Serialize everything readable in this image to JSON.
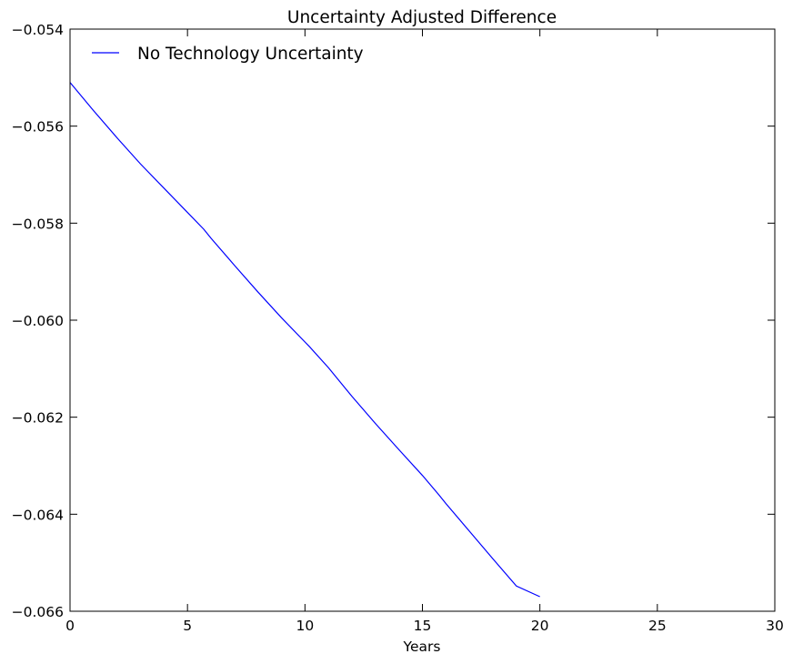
{
  "chart_data": {
    "type": "line",
    "title": "Uncertainty Adjusted Difference",
    "xlabel": "Years",
    "ylabel": "",
    "xlim": [
      0,
      30
    ],
    "ylim": [
      -0.066,
      -0.054
    ],
    "xticks": [
      0,
      5,
      10,
      15,
      20,
      25,
      30
    ],
    "yticks": [
      -0.054,
      -0.056,
      -0.058,
      -0.06,
      -0.062,
      -0.064,
      -0.066
    ],
    "xtick_labels": [
      "0",
      "5",
      "10",
      "15",
      "20",
      "25",
      "30"
    ],
    "ytick_labels": [
      "−0.054",
      "−0.056",
      "−0.058",
      "−0.060",
      "−0.062",
      "−0.064",
      "−0.066"
    ],
    "grid": false,
    "legend_position": "top-left",
    "series": [
      {
        "name": "No Technology Uncertainty",
        "color": "#0000ff",
        "x": [
          0,
          1,
          2,
          3,
          4,
          5,
          5.7,
          6,
          7,
          8,
          9,
          10,
          10.2,
          11,
          12,
          13,
          14,
          15,
          15.7,
          16,
          17,
          18,
          19,
          20
        ],
        "y": [
          -0.0551,
          -0.05568,
          -0.05624,
          -0.05678,
          -0.05728,
          -0.05778,
          -0.05813,
          -0.05831,
          -0.05887,
          -0.05942,
          -0.05995,
          -0.06045,
          -0.06055,
          -0.06098,
          -0.06157,
          -0.06213,
          -0.06267,
          -0.0632,
          -0.0636,
          -0.06378,
          -0.06435,
          -0.06492,
          -0.06548,
          -0.0657
        ]
      }
    ]
  }
}
